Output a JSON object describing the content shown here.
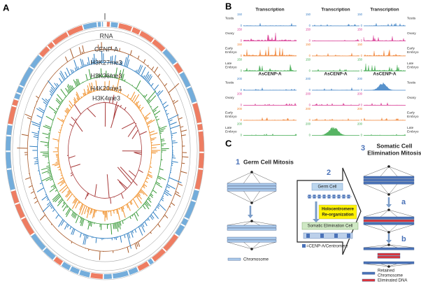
{
  "panel_a": {
    "label": "A",
    "tracks": [
      "RNA",
      "CENP-A",
      "H3K27me3",
      "H3K36me3",
      "H4K20me1",
      "H3K4me3"
    ]
  },
  "panel_b": {
    "label": "B",
    "titles_top": [
      "Transcription",
      "Transcription",
      "Transcription"
    ],
    "titles_bottom": [
      "AsCENP-A",
      "AsCENP-A",
      "AsCENP-A"
    ],
    "row_labels": [
      [
        "Testis"
      ],
      [
        "Ovary"
      ],
      [
        "Early",
        "Embryo"
      ],
      [
        "Late",
        "Embryo"
      ]
    ],
    "scale_transcription": 150,
    "scale_cenp": 200,
    "scale_zero": 0
  },
  "panel_c": {
    "label": "C",
    "step1": {
      "number": 1,
      "title": "Germ Cell Mitosis",
      "legend": "Chromosome"
    },
    "step2": {
      "number": 2,
      "germ_cell": "Germ Cell",
      "reorg": [
        "Holocentromere",
        "Re-organization"
      ],
      "somatic": "Somatic Elimination Cell",
      "legend": "=CENP-A/Centromere"
    },
    "step3": {
      "number": 3,
      "title": [
        "Somatic Cell",
        "Elimination Mitosis"
      ],
      "substeps": [
        "a",
        "b"
      ],
      "retained": [
        "Retained",
        "Chromosome"
      ],
      "eliminated": "Eliminated DNA"
    }
  }
}
